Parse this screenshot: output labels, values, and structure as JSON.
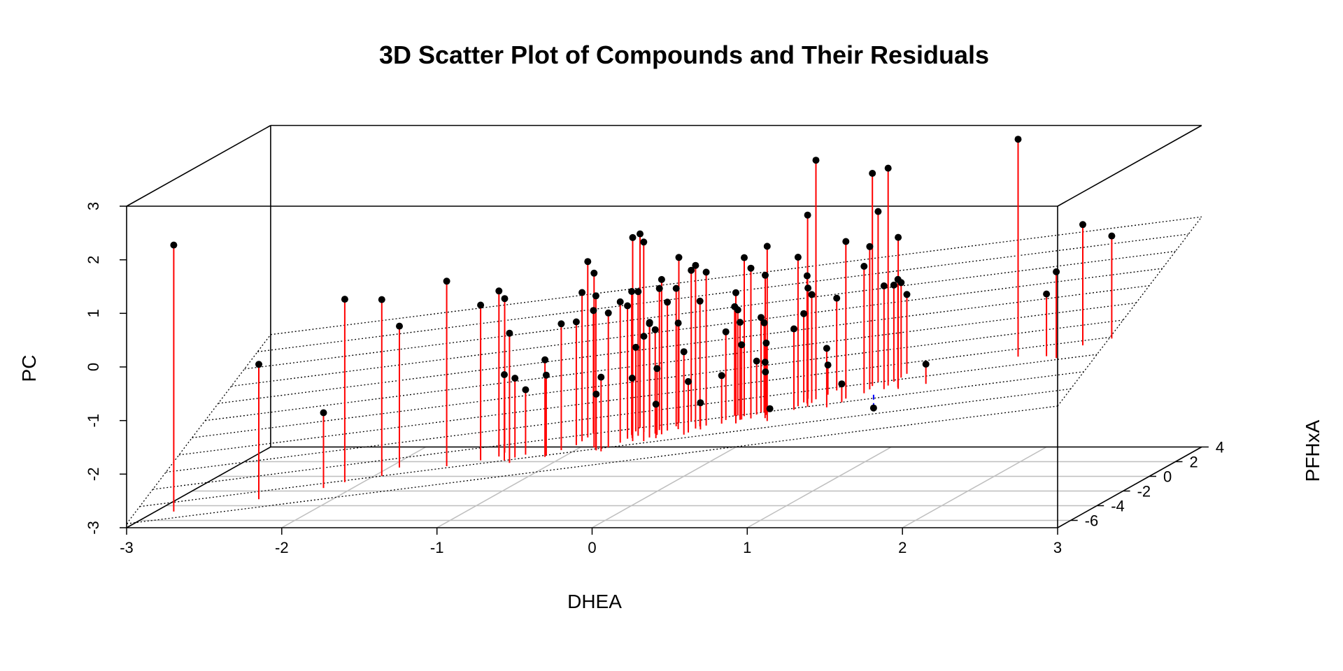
{
  "chart_data": {
    "type": "scatter",
    "title": "3D Scatter Plot of Compounds and Their Residuals",
    "xlabel": "DHEA",
    "ylabel": "PFHxA",
    "zlabel": "PC",
    "xlim": [
      -3,
      3
    ],
    "ylim": [
      -7,
      4
    ],
    "zlim": [
      -3,
      3
    ],
    "x_ticks": [
      "-3",
      "-2",
      "-1",
      "0",
      "1",
      "2",
      "3"
    ],
    "y_ticks": [
      "-6",
      "-4",
      "-2",
      "0",
      "2",
      "4"
    ],
    "z_ticks": [
      "-3",
      "-2",
      "-1",
      "0",
      "1",
      "2",
      "3"
    ],
    "grid": true,
    "regression_plane": {
      "intercept": -0.54,
      "slope_x": 0.366,
      "slope_y": 0.184
    },
    "residual_colors": {
      "positive": "#ff0000",
      "negative": "#0000ff",
      "point": "#000000",
      "plane": "#000000",
      "grid": "#bebebe"
    },
    "points": [
      {
        "x": -2.73,
        "y": -6.6,
        "z": 2.22
      },
      {
        "x": -2.19,
        "y": -6.5,
        "z": -0.02
      },
      {
        "x": -1.79,
        "y": -6.3,
        "z": -0.95
      },
      {
        "x": -1.67,
        "y": -6.1,
        "z": 1.14
      },
      {
        "x": -1.44,
        "y": -6.0,
        "z": 1.12
      },
      {
        "x": -1.36,
        "y": -5.6,
        "z": 0.57
      },
      {
        "x": -1.03,
        "y": -5.9,
        "z": 1.45
      },
      {
        "x": -0.82,
        "y": -5.8,
        "z": 0.99
      },
      {
        "x": -0.71,
        "y": -5.7,
        "z": 1.24
      },
      {
        "x": -0.69,
        "y": -5.5,
        "z": 1.07
      },
      {
        "x": -0.65,
        "y": -6.0,
        "z": -0.28
      },
      {
        "x": -0.6,
        "y": -6.2,
        "z": 0.52
      },
      {
        "x": -0.59,
        "y": -5.9,
        "z": -0.36
      },
      {
        "x": -0.53,
        "y": -5.8,
        "z": -0.59
      },
      {
        "x": -0.38,
        "y": -6.1,
        "z": 0.01
      },
      {
        "x": -0.38,
        "y": -6.0,
        "z": -0.29
      },
      {
        "x": -0.3,
        "y": -5.8,
        "z": 0.64
      },
      {
        "x": -0.22,
        "y": -5.6,
        "z": 0.65
      },
      {
        "x": -0.2,
        "y": -5.4,
        "z": 1.17
      },
      {
        "x": -0.18,
        "y": -5.2,
        "z": 1.72
      },
      {
        "x": -0.16,
        "y": -5.0,
        "z": 0.78
      },
      {
        "x": -0.08,
        "y": -5.9,
        "z": 1.6
      },
      {
        "x": -0.06,
        "y": -6.0,
        "z": 1.19
      },
      {
        "x": -0.05,
        "y": -6.1,
        "z": -0.63
      },
      {
        "x": -0.01,
        "y": -6.2,
        "z": -0.3
      },
      {
        "x": 0.02,
        "y": -6.0,
        "z": 0.87
      },
      {
        "x": 0.08,
        "y": -5.8,
        "z": 1.05
      },
      {
        "x": 0.11,
        "y": -5.6,
        "z": 0.95
      },
      {
        "x": 0.12,
        "y": -5.4,
        "z": 1.19
      },
      {
        "x": 0.13,
        "y": -5.2,
        "z": 0.12
      },
      {
        "x": 0.14,
        "y": -5.0,
        "z": 2.21
      },
      {
        "x": 0.14,
        "y": -5.6,
        "z": -0.4
      },
      {
        "x": 0.16,
        "y": -5.8,
        "z": 2.25
      },
      {
        "x": 0.17,
        "y": -5.5,
        "z": 1.2
      },
      {
        "x": 0.19,
        "y": -5.3,
        "z": 0.34
      },
      {
        "x": 0.21,
        "y": -5.1,
        "z": 0.57
      },
      {
        "x": 0.24,
        "y": -5.9,
        "z": 2.18
      },
      {
        "x": 0.26,
        "y": -5.7,
        "z": 0.63
      },
      {
        "x": 0.28,
        "y": -5.5,
        "z": 0.49
      },
      {
        "x": 0.29,
        "y": -5.3,
        "z": 1.23
      },
      {
        "x": 0.3,
        "y": -5.6,
        "z": -0.22
      },
      {
        "x": 0.31,
        "y": -5.8,
        "z": -0.86
      },
      {
        "x": 0.33,
        "y": -5.6,
        "z": 1.44
      },
      {
        "x": 0.35,
        "y": -5.4,
        "z": 0.99
      },
      {
        "x": 0.39,
        "y": -5.2,
        "z": 1.22
      },
      {
        "x": 0.39,
        "y": -5.0,
        "z": 1.77
      },
      {
        "x": 0.42,
        "y": -5.4,
        "z": 0.6
      },
      {
        "x": 0.47,
        "y": -5.0,
        "z": 1.53
      },
      {
        "x": 0.49,
        "y": -5.8,
        "z": 0.12
      },
      {
        "x": 0.51,
        "y": -5.7,
        "z": -0.45
      },
      {
        "x": 0.54,
        "y": -5.5,
        "z": 1.69
      },
      {
        "x": 0.56,
        "y": -5.4,
        "z": 1.01
      },
      {
        "x": 0.58,
        "y": -5.6,
        "z": -0.86
      },
      {
        "x": 0.6,
        "y": -5.4,
        "z": 1.55
      },
      {
        "x": 0.7,
        "y": -5.4,
        "z": -0.38
      },
      {
        "x": 0.71,
        "y": -5.2,
        "z": 0.41
      },
      {
        "x": 0.75,
        "y": -5.0,
        "z": 0.85
      },
      {
        "x": 0.77,
        "y": -5.0,
        "z": 0.79
      },
      {
        "x": 0.8,
        "y": -5.5,
        "z": 1.18
      },
      {
        "x": 0.81,
        "y": -5.3,
        "z": 0.6
      },
      {
        "x": 0.82,
        "y": -5.1,
        "z": 1.78
      },
      {
        "x": 0.82,
        "y": -5.3,
        "z": 0.18
      },
      {
        "x": 0.88,
        "y": -5.3,
        "z": 1.61
      },
      {
        "x": 0.9,
        "y": -5.1,
        "z": -0.15
      },
      {
        "x": 0.92,
        "y": -5.0,
        "z": 0.65
      },
      {
        "x": 0.93,
        "y": -4.8,
        "z": 1.41
      },
      {
        "x": 0.94,
        "y": -5.0,
        "z": 0.55
      },
      {
        "x": 0.94,
        "y": -4.9,
        "z": -0.38
      },
      {
        "x": 0.96,
        "y": -4.8,
        "z": -1.08
      },
      {
        "x": 0.97,
        "y": -5.2,
        "z": 0.2
      },
      {
        "x": 0.98,
        "y": -5.4,
        "z": -0.13
      },
      {
        "x": 1.01,
        "y": -5.6,
        "z": 2.06
      },
      {
        "x": 1.14,
        "y": -5.1,
        "z": 0.45
      },
      {
        "x": 1.15,
        "y": -4.9,
        "z": 1.76
      },
      {
        "x": 1.17,
        "y": -4.7,
        "z": 0.68
      },
      {
        "x": 1.18,
        "y": -4.5,
        "z": 1.13
      },
      {
        "x": 1.2,
        "y": -4.8,
        "z": 1.4
      },
      {
        "x": 1.22,
        "y": -5.0,
        "z": 2.56
      },
      {
        "x": 1.23,
        "y": -4.8,
        "z": 1.05
      },
      {
        "x": 1.24,
        "y": -4.6,
        "z": 3.53
      },
      {
        "x": 1.3,
        "y": -4.4,
        "z": -0.32
      },
      {
        "x": 1.34,
        "y": -4.2,
        "z": 0.9
      },
      {
        "x": 1.36,
        "y": -5.2,
        "z": 0.1
      },
      {
        "x": 1.44,
        "y": -5.0,
        "z": -0.59
      },
      {
        "x": 1.45,
        "y": -4.8,
        "z": 2.04
      },
      {
        "x": 1.55,
        "y": -4.6,
        "z": 1.55
      },
      {
        "x": 1.57,
        "y": -4.4,
        "z": 1.89
      },
      {
        "x": 1.57,
        "y": -4.2,
        "z": 3.23
      },
      {
        "x": 1.59,
        "y": -4.0,
        "z": 2.49
      },
      {
        "x": 1.62,
        "y": -4.7,
        "z": -1.08
      },
      {
        "x": 1.67,
        "y": -4.5,
        "z": 1.17
      },
      {
        "x": 1.68,
        "y": -4.3,
        "z": 3.34
      },
      {
        "x": 1.7,
        "y": -4.1,
        "z": 1.13
      },
      {
        "x": 1.73,
        "y": -3.9,
        "z": 1.15
      },
      {
        "x": 1.75,
        "y": -3.7,
        "z": 0.9
      },
      {
        "x": 1.76,
        "y": -4.5,
        "z": 1.29
      },
      {
        "x": 1.77,
        "y": -4.6,
        "z": 2.09
      },
      {
        "x": 1.94,
        "y": -4.5,
        "z": -0.29
      },
      {
        "x": 2.45,
        "y": -3.5,
        "z": 3.77
      },
      {
        "x": 2.65,
        "y": -3.7,
        "z": 0.91
      },
      {
        "x": 2.73,
        "y": -3.9,
        "z": 1.35
      },
      {
        "x": 2.85,
        "y": -3.3,
        "z": 2.15
      },
      {
        "x": 3.02,
        "y": -3.1,
        "z": 1.91
      }
    ]
  }
}
